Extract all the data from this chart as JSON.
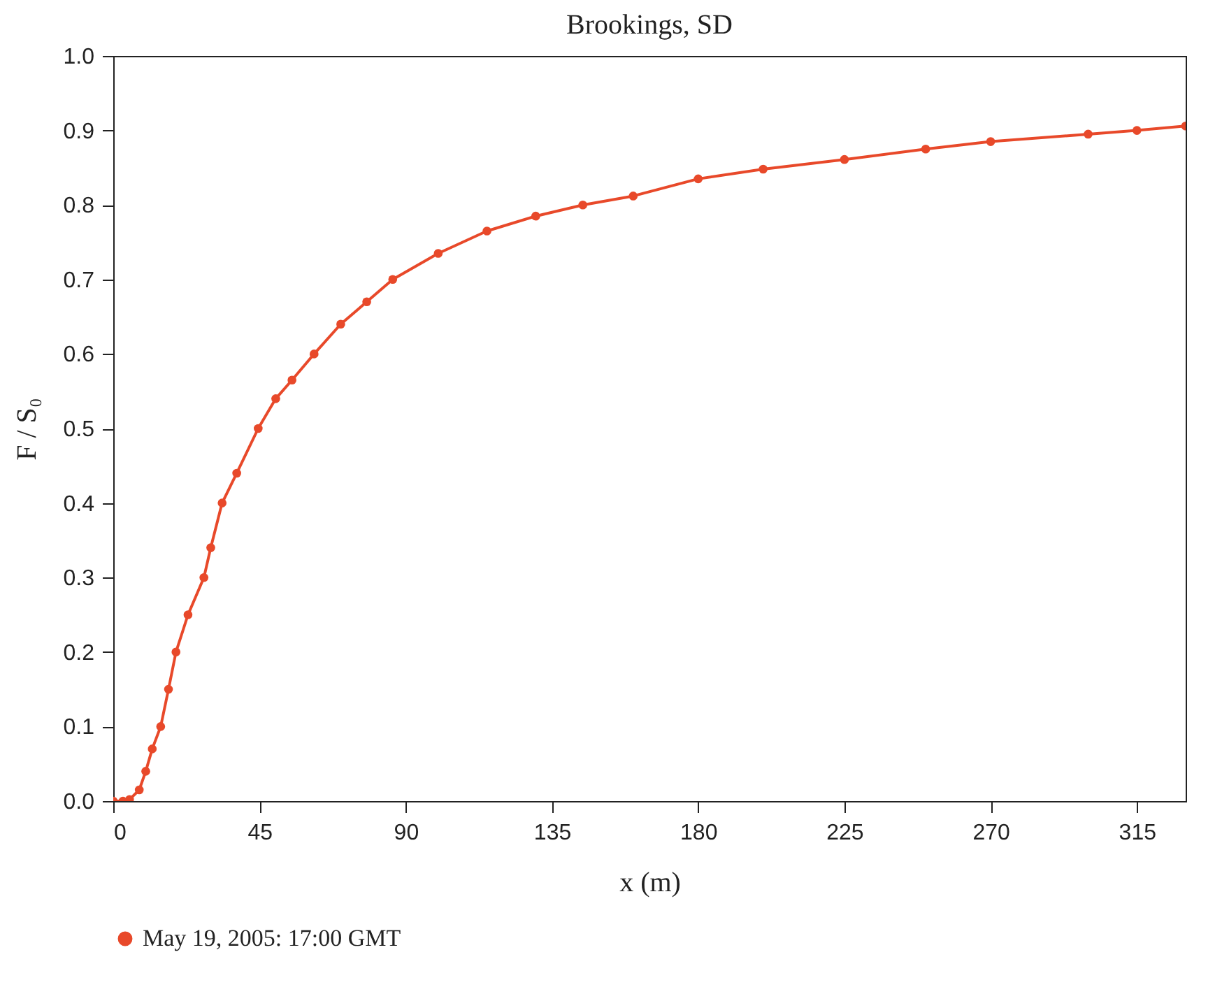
{
  "chart_data": {
    "type": "line",
    "title": "Brookings, SD",
    "xlabel": "x (m)",
    "ylabel": "F / S₀",
    "xlim": [
      0,
      330
    ],
    "xticks": [
      0,
      45,
      90,
      135,
      180,
      225,
      270,
      315
    ],
    "ylim": [
      0,
      1
    ],
    "yticks": [
      {
        "value": 0,
        "label": "0.0"
      },
      0.1,
      0.2,
      0.3,
      0.4,
      0.5,
      0.6,
      0.7,
      0.8,
      0.9,
      {
        "value": 1,
        "label": "1.0"
      }
    ],
    "marker": "circle",
    "line_style": "solid",
    "legend": "bottom",
    "grid": false,
    "series": [
      {
        "name": "May 19, 2005: 17:00 GMT",
        "color": "#e8492a",
        "x": [
          0,
          3,
          5,
          8,
          10,
          12,
          14.6,
          17,
          19.3,
          23,
          27.9,
          30,
          33.5,
          38,
          44.6,
          50,
          55,
          61.8,
          70,
          78,
          86,
          100,
          115,
          130,
          144.5,
          160,
          180,
          200,
          225,
          250,
          270,
          300,
          315,
          330
        ],
        "values": [
          0,
          0,
          0.002,
          0.015,
          0.04,
          0.07,
          0.1,
          0.15,
          0.2,
          0.25,
          0.3,
          0.34,
          0.4,
          0.44,
          0.5,
          0.54,
          0.565,
          0.6,
          0.64,
          0.67,
          0.7,
          0.735,
          0.765,
          0.785,
          0.8,
          0.812,
          0.835,
          0.848,
          0.861,
          0.875,
          0.885,
          0.895,
          0.9,
          0.906
        ]
      }
    ]
  }
}
